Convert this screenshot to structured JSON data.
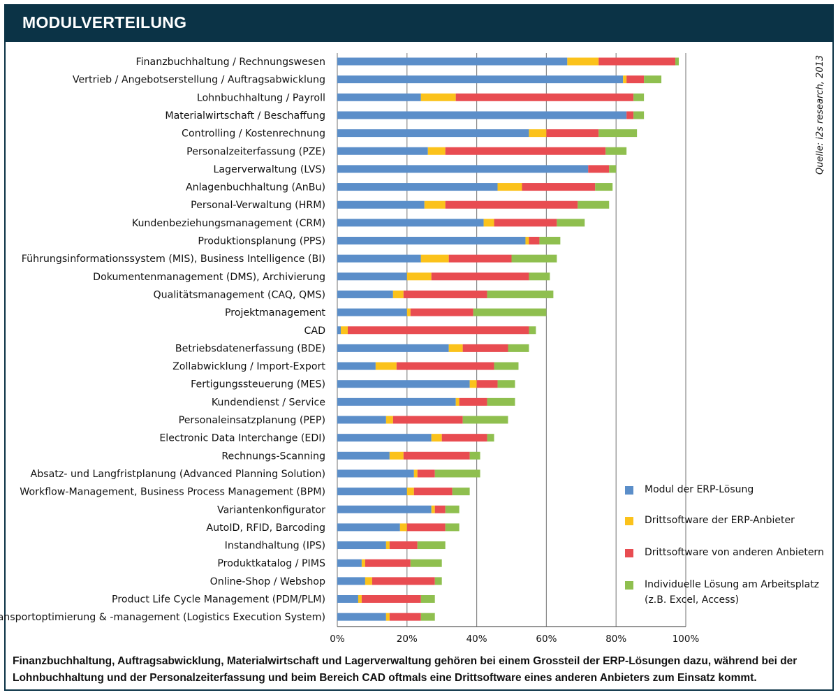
{
  "header": {
    "title": "MODULVERTEILUNG"
  },
  "source": "Quelle: i2s research, 2013",
  "caption": "Finanzbuchhaltung, Auftragsabwicklung, Materialwirtschaft und Lagerverwaltung gehören bei einem Grossteil der ERP-Lösungen dazu, während bei der Lohnbuchhaltung und der Personalzeiterfassung und beim Bereich CAD oftmals eine Drittsoftware eines anderen Anbieters zum Einsatz kommt.",
  "colors": {
    "erp": "#5b8ec9",
    "erp_vendor": "#fbc21b",
    "other_vendor": "#e84c51",
    "individual": "#8fbf4f",
    "header_bg": "#0b3346",
    "grid": "#888888"
  },
  "chart_data": {
    "type": "bar",
    "orientation": "horizontal",
    "stacked": true,
    "xlim": [
      0,
      100
    ],
    "x_ticks": [
      "0%",
      "20%",
      "40%",
      "60%",
      "80%",
      "100%"
    ],
    "grid": true,
    "legend_position": "bottom-right",
    "categories": [
      "Finanzbuchhaltung / Rechnungswesen",
      "Vertrieb / Angebotserstellung / Auftragsabwicklung",
      "Lohnbuchhaltung / Payroll",
      "Materialwirtschaft / Beschaffung",
      "Controlling / Kostenrechnung",
      "Personalzeiterfassung (PZE)",
      "Lagerverwaltung (LVS)",
      "Anlagenbuchhaltung (AnBu)",
      "Personal-Verwaltung (HRM)",
      "Kundenbeziehungsmanagement (CRM)",
      "Produktionsplanung (PPS)",
      "Führungsinformationssystem (MIS), Business Intelligence (BI)",
      "Dokumentenmanagement (DMS), Archivierung",
      "Qualitätsmanagement (CAQ, QMS)",
      "Projektmanagement",
      "CAD",
      "Betriebsdatenerfassung (BDE)",
      "Zollabwicklung / Import-Export",
      "Fertigungssteuerung (MES)",
      "Kundendienst / Service",
      "Personaleinsatzplanung (PEP)",
      "Electronic Data Interchange (EDI)",
      "Rechnungs-Scanning",
      "Absatz- und Langfristplanung (Advanced Planning Solution)",
      "Workflow-Management, Business Process Management (BPM)",
      "Variantenkonfigurator",
      "AutoID, RFID, Barcoding",
      "Instandhaltung (IPS)",
      "Produktkatalog / PIMS",
      "Online-Shop / Webshop",
      "Product Life Cycle Management (PDM/PLM)",
      "Transportoptimierung & -management (Logistics Execution System)"
    ],
    "series": [
      {
        "name": "Modul der ERP-Lösung",
        "color": "#5b8ec9",
        "values": [
          66,
          82,
          24,
          83,
          55,
          26,
          72,
          46,
          25,
          42,
          54,
          24,
          20,
          16,
          20,
          1,
          32,
          11,
          38,
          34,
          14,
          27,
          15,
          22,
          20,
          27,
          18,
          14,
          7,
          8,
          6,
          14
        ]
      },
      {
        "name": "Drittsoftware der ERP-Anbieter",
        "color": "#fbc21b",
        "values": [
          9,
          1,
          10,
          0,
          5,
          5,
          0,
          7,
          6,
          3,
          1,
          8,
          7,
          3,
          1,
          2,
          4,
          6,
          2,
          1,
          2,
          3,
          4,
          1,
          2,
          1,
          2,
          1,
          1,
          2,
          1,
          1
        ]
      },
      {
        "name": "Drittsoftware von anderen Anbietern",
        "color": "#e84c51",
        "values": [
          22,
          5,
          51,
          2,
          15,
          46,
          6,
          21,
          38,
          18,
          3,
          18,
          28,
          24,
          18,
          52,
          13,
          28,
          6,
          8,
          20,
          13,
          19,
          5,
          11,
          3,
          11,
          8,
          13,
          18,
          17,
          9
        ]
      },
      {
        "name": "Individuelle Lösung am Arbeitsplatz (z.B. Excel, Access)",
        "color": "#8fbf4f",
        "values": [
          1,
          5,
          3,
          3,
          11,
          6,
          2,
          5,
          9,
          8,
          6,
          13,
          6,
          19,
          21,
          2,
          6,
          7,
          5,
          8,
          13,
          2,
          3,
          13,
          5,
          4,
          4,
          8,
          9,
          2,
          4,
          4
        ]
      }
    ]
  },
  "legend": {
    "items": [
      {
        "label": "Modul der ERP-Lösung",
        "color": "#5b8ec9"
      },
      {
        "label": "Drittsoftware der ERP-Anbieter",
        "color": "#fbc21b"
      },
      {
        "label": "Drittsoftware von anderen Anbietern",
        "color": "#e84c51"
      },
      {
        "label": "Individuelle Lösung am Arbeitsplatz (z.B. Excel, Access)",
        "color": "#8fbf4f"
      }
    ]
  }
}
